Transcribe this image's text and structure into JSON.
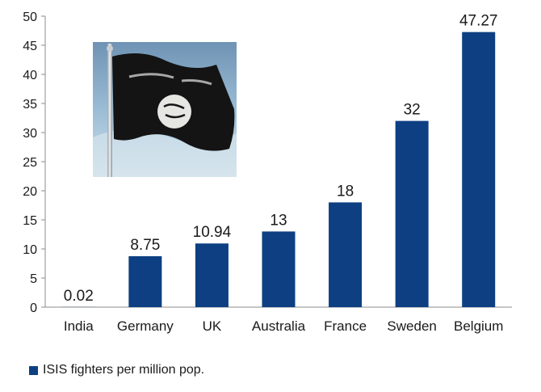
{
  "chart_data": {
    "type": "bar",
    "categories": [
      "India",
      "Germany",
      "UK",
      "Australia",
      "France",
      "Sweden",
      "Belgium"
    ],
    "series": [
      {
        "name": "ISIS fighters per million pop.",
        "values": [
          0.02,
          8.75,
          10.94,
          13,
          18,
          32,
          47.27
        ]
      }
    ],
    "data_labels": [
      "0.02",
      "8.75",
      "10.94",
      "13",
      "18",
      "32",
      "47.27"
    ],
    "ylim": [
      0,
      50
    ],
    "yticks": [
      0,
      5,
      10,
      15,
      20,
      25,
      30,
      35,
      40,
      45,
      50
    ],
    "grid": false,
    "legend_position": "bottom-left",
    "bar_color": "#0d3f82",
    "title": "",
    "xlabel": "",
    "ylabel": ""
  },
  "image": {
    "description_icon": "black-flag-photo"
  }
}
